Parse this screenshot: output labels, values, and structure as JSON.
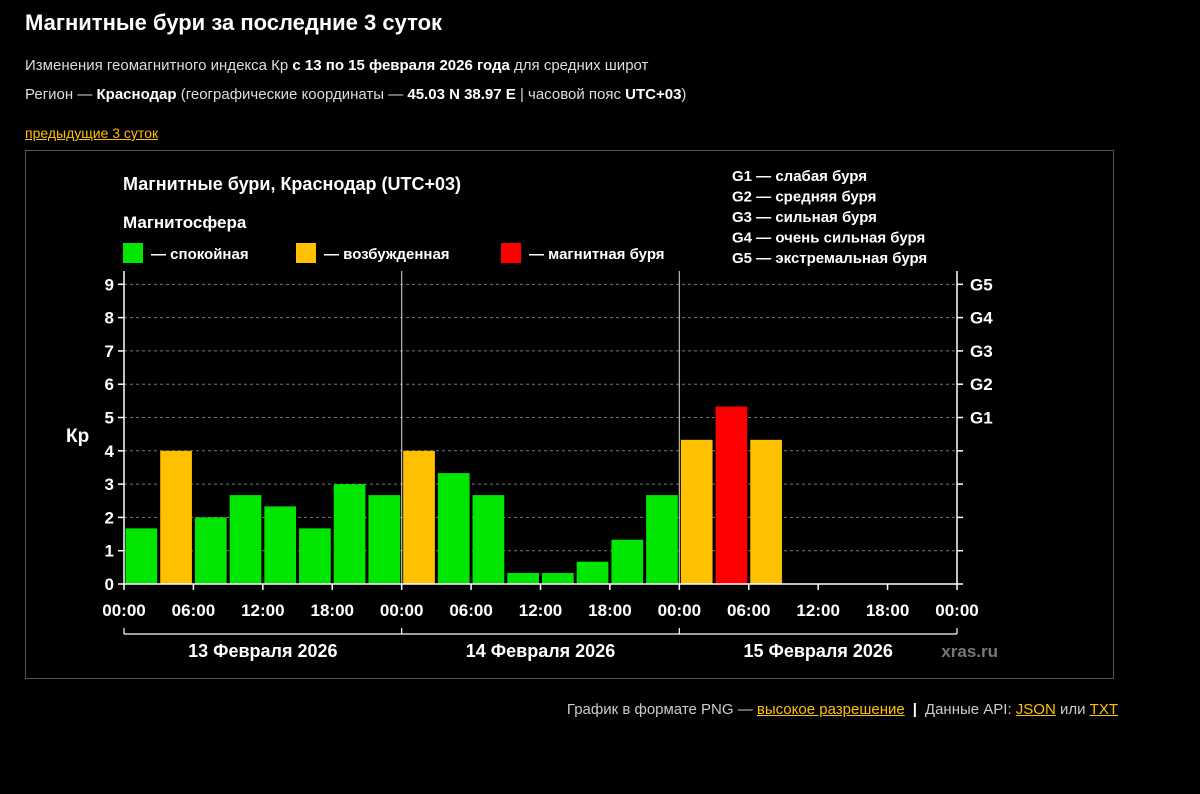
{
  "page": {
    "title": "Магнитные бури за последние 3 суток",
    "line1": {
      "prefix": "Изменения геомагнитного индекса Кр ",
      "bold": "с 13 по 15 февраля 2026 года",
      "suffix": " для средних широт"
    },
    "line2": {
      "prefix": "Регион — ",
      "region": "Краснодар",
      "mid": " (географические координаты — ",
      "coords": "45.03 N 38.97 E",
      "mid2": " | часовой пояс ",
      "tz": "UTC+03",
      "end": ")"
    },
    "prev_link": "предыдущие 3 суток",
    "footer": {
      "png_text": "График в формате PNG — ",
      "png_link": "высокое разрешение",
      "separator": "|",
      "api_text": "Данные API: ",
      "json_link": "JSON",
      "or_text": " или ",
      "txt_link": "TXT"
    }
  },
  "chart_data": {
    "type": "bar",
    "title": "Магнитные бури, Краснодар (UTC+03)",
    "legend_title": "Магнитосфера",
    "legend": [
      {
        "label": "— спокойная",
        "color": "#00e600"
      },
      {
        "label": "— возбужденная",
        "color": "#ffc000"
      },
      {
        "label": "— магнитная буря",
        "color": "#ff0000"
      }
    ],
    "g_scale_legend": [
      "G1 — слабая буря",
      "G2 — средняя буря",
      "G3 — сильная буря",
      "G4 — очень сильная буря",
      "G5 — экстремальная буря"
    ],
    "ylabel": "Кр",
    "ylim": [
      0,
      9
    ],
    "y_ticks": [
      "0",
      "1",
      "2",
      "3",
      "4",
      "5",
      "6",
      "7",
      "8",
      "9"
    ],
    "right_ticks": [
      {
        "label": "G1",
        "value": 5
      },
      {
        "label": "G2",
        "value": 6
      },
      {
        "label": "G3",
        "value": 7
      },
      {
        "label": "G4",
        "value": 8
      },
      {
        "label": "G5",
        "value": 9
      }
    ],
    "x_ticks": [
      "00:00",
      "06:00",
      "12:00",
      "18:00",
      "00:00",
      "06:00",
      "12:00",
      "18:00",
      "00:00",
      "06:00",
      "12:00",
      "18:00",
      "00:00"
    ],
    "days": [
      "13 Февраля 2026",
      "14 Февраля 2026",
      "15 Февраля 2026"
    ],
    "interval_hours": 3,
    "values": [
      1.67,
      4.0,
      2.0,
      2.67,
      2.33,
      1.67,
      3.0,
      2.67,
      4.0,
      3.33,
      2.67,
      0.33,
      0.33,
      0.67,
      1.33,
      2.67,
      4.33,
      5.33,
      4.33
    ],
    "level_colors": {
      "quiet": "#00e600",
      "active": "#ffc000",
      "storm": "#ff0000"
    },
    "active_min": 4,
    "storm_min": 5,
    "grid": "horizontal dashed",
    "watermark": "xras.ru"
  }
}
